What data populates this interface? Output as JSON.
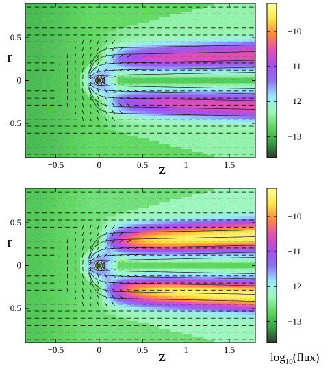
{
  "chart_data": [
    {
      "type": "heatmap",
      "panel": "top",
      "xlabel": "z",
      "ylabel": "r",
      "xlim": [
        -0.85,
        1.8
      ],
      "ylim": [
        -0.9,
        0.9
      ],
      "xticks": [
        -0.5,
        0,
        0.5,
        1,
        1.5
      ],
      "xtick_labels": [
        "−0.5",
        "0",
        "0.5",
        "1",
        "1.5"
      ],
      "yticks": [
        0.5,
        0,
        -0.5
      ],
      "ytick_labels": [
        "0.5",
        "0",
        "−0.5"
      ],
      "colorbar": {
        "range": [
          -13.6,
          -9.2
        ],
        "ticks": [
          -10,
          -11,
          -12,
          -13
        ],
        "tick_labels": [
          "−10",
          "−11",
          "−12",
          "−13"
        ],
        "label": ""
      },
      "field": {
        "background": -12.7,
        "core_peak": -11.0,
        "jet_r": 0.22,
        "sheath_r": 0.28,
        "jet_width": 0.14,
        "opening": 0.12
      }
    },
    {
      "type": "heatmap",
      "panel": "bottom",
      "xlabel": "z",
      "ylabel": "r",
      "xlim": [
        -0.85,
        1.8
      ],
      "ylim": [
        -0.9,
        0.9
      ],
      "xticks": [
        -0.5,
        0,
        0.5,
        1,
        1.5
      ],
      "xtick_labels": [
        "−0.5",
        "0",
        "0.5",
        "1",
        "1.5"
      ],
      "yticks": [
        0.5,
        0,
        -0.5
      ],
      "ytick_labels": [
        "0.5",
        "0",
        "−0.5"
      ],
      "colorbar": {
        "range": [
          -13.6,
          -9.2
        ],
        "ticks": [
          -10,
          -11,
          -12,
          -13
        ],
        "tick_labels": [
          "−10",
          "−11",
          "−12",
          "−13"
        ],
        "label": "log",
        "label_sub": "10",
        "label_tail": "(flux)"
      },
      "field": {
        "background": -12.6,
        "core_peak": -9.8,
        "jet_r": 0.27,
        "sheath_r": 0.33,
        "jet_width": 0.16,
        "opening": 0.14
      }
    }
  ],
  "colors": {
    "colormap": [
      "#2f3a31",
      "#37a247",
      "#62d662",
      "#9ff7b9",
      "#9ae6ff",
      "#8d71f2",
      "#a84fe8",
      "#e44fb0",
      "#ff8a3c",
      "#ffe54b",
      "#ffff99"
    ],
    "arrow": "#000000",
    "contour": "#1a1a1a"
  }
}
